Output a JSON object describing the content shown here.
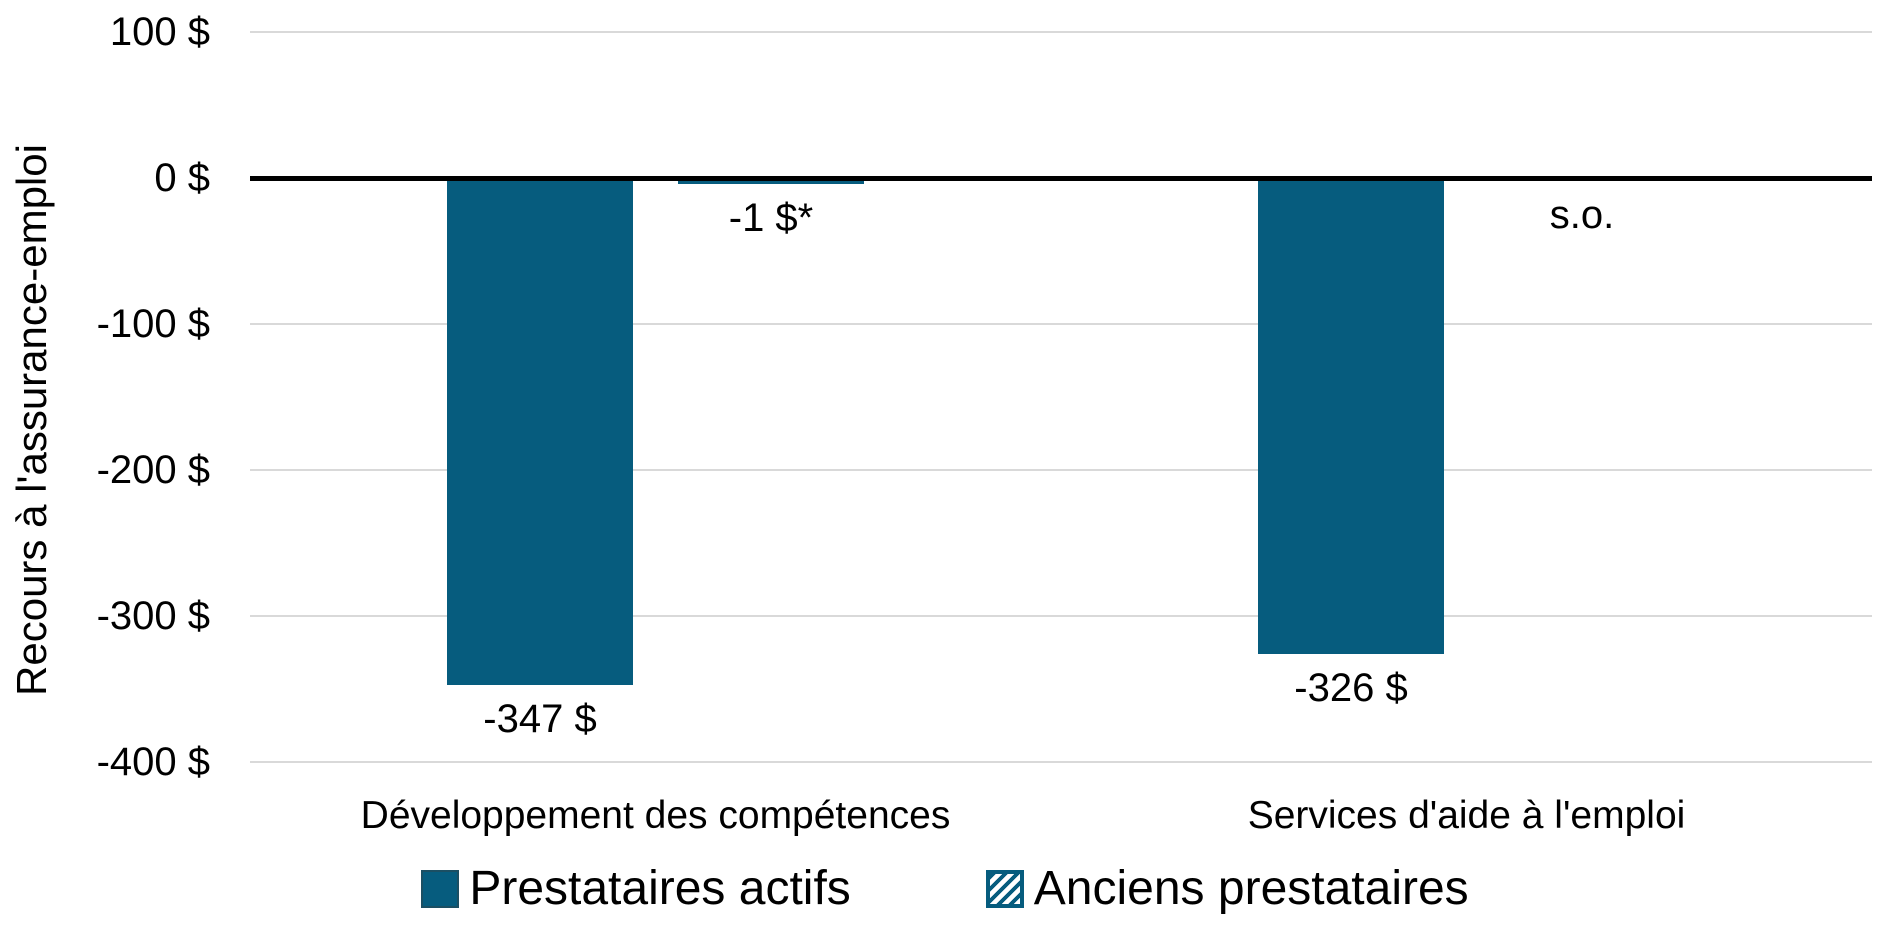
{
  "chart_data": {
    "type": "bar",
    "title": "",
    "ylabel": "Recours à l'assurance-emploi",
    "xlabel": "",
    "categories": [
      "Développement des compétences",
      "Services d'aide à l'emploi"
    ],
    "series": [
      {
        "name": "Prestataires actifs",
        "pattern": "solid",
        "values": [
          -347,
          -326
        ],
        "data_labels": [
          "-347 $",
          "-326 $"
        ]
      },
      {
        "name": "Anciens prestataires",
        "pattern": "hatched",
        "values": [
          -1,
          null
        ],
        "data_labels": [
          "-1 $*",
          "s.o."
        ]
      }
    ],
    "y_ticks": [
      {
        "value": 100,
        "label": "100 $"
      },
      {
        "value": 0,
        "label": "0 $"
      },
      {
        "value": -100,
        "label": "-100 $"
      },
      {
        "value": -200,
        "label": "-200 $"
      },
      {
        "value": -300,
        "label": "-300 $"
      },
      {
        "value": -400,
        "label": "-400 $"
      }
    ],
    "ylim": [
      -450,
      100
    ],
    "grid": true,
    "legend_position": "bottom",
    "colors": {
      "bar_fill": "#065C7E",
      "bar_border": "#1B4F63",
      "hatch_stripe": "#FFFFFF",
      "gridline": "#D9D9D9",
      "zero_line": "#000000",
      "text": "#000000",
      "background": "#FFFFFF"
    }
  }
}
